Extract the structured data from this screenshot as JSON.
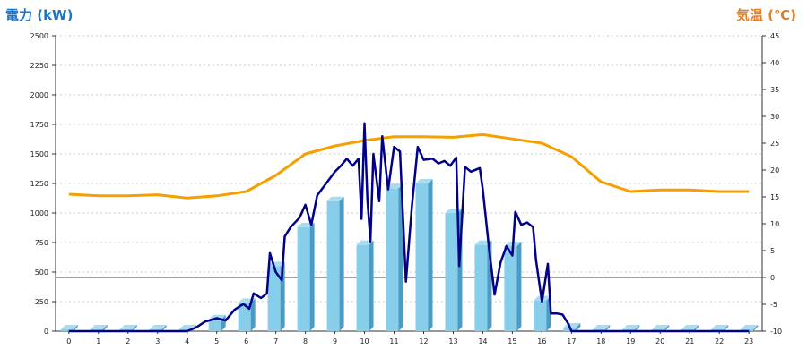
{
  "left_axis_title": "電力 (kW)",
  "right_axis_title": "気温 (℃)",
  "colors": {
    "bar_face": "#87ceeb",
    "bar_side": "#4a9cc4",
    "bar_top": "#a9dcef",
    "power_line": "#00008b",
    "temperature_line": "#f5a000",
    "grid": "#bbbbbb",
    "zero_line": "#000000",
    "left_title": "#1a75c8",
    "right_title": "#e67e22"
  },
  "chart_data": {
    "type": "bar+line",
    "x_ticks": [
      "0",
      "1",
      "2",
      "3",
      "4",
      "5",
      "6",
      "7",
      "8",
      "9",
      "10",
      "11",
      "12",
      "13",
      "14",
      "15",
      "16",
      "17",
      "18",
      "19",
      "20",
      "21",
      "22",
      "23"
    ],
    "y_left_ticks": [
      "0",
      "250",
      "500",
      "750",
      "1000",
      "1250",
      "1500",
      "1750",
      "2000",
      "2250",
      "2500"
    ],
    "y_right_ticks": [
      "-10",
      "-5",
      "0",
      "5",
      "10",
      "15",
      "20",
      "25",
      "30",
      "35",
      "40",
      "45"
    ],
    "y_left_range": [
      0,
      2500
    ],
    "y_right_range": [
      -10,
      45
    ],
    "grid": true,
    "hourly_power_bars": {
      "x": [
        0,
        1,
        2,
        3,
        4,
        5,
        6,
        7,
        8,
        9,
        10,
        11,
        12,
        13,
        14,
        15,
        16,
        17,
        18,
        19,
        20,
        21,
        22,
        23
      ],
      "values": [
        0,
        0,
        0,
        0,
        0,
        100,
        240,
        550,
        880,
        1100,
        730,
        1210,
        1250,
        1000,
        730,
        720,
        260,
        30,
        0,
        0,
        0,
        0,
        0,
        0
      ]
    },
    "power_line": {
      "points": [
        [
          0,
          0
        ],
        [
          1,
          0
        ],
        [
          2,
          0
        ],
        [
          3,
          0
        ],
        [
          4,
          0
        ],
        [
          4.3,
          30
        ],
        [
          4.6,
          80
        ],
        [
          5,
          110
        ],
        [
          5.3,
          90
        ],
        [
          5.6,
          180
        ],
        [
          5.9,
          230
        ],
        [
          6.1,
          190
        ],
        [
          6.25,
          320
        ],
        [
          6.5,
          280
        ],
        [
          6.7,
          320
        ],
        [
          6.8,
          660
        ],
        [
          7,
          500
        ],
        [
          7.2,
          430
        ],
        [
          7.3,
          800
        ],
        [
          7.5,
          880
        ],
        [
          7.8,
          960
        ],
        [
          8,
          1070
        ],
        [
          8.2,
          900
        ],
        [
          8.4,
          1150
        ],
        [
          8.7,
          1250
        ],
        [
          9,
          1350
        ],
        [
          9.2,
          1400
        ],
        [
          9.4,
          1460
        ],
        [
          9.6,
          1400
        ],
        [
          9.8,
          1460
        ],
        [
          9.9,
          950
        ],
        [
          10,
          1760
        ],
        [
          10.1,
          1110
        ],
        [
          10.2,
          760
        ],
        [
          10.3,
          1500
        ],
        [
          10.5,
          1100
        ],
        [
          10.6,
          1650
        ],
        [
          10.8,
          1200
        ],
        [
          11,
          1560
        ],
        [
          11.2,
          1520
        ],
        [
          11.4,
          420
        ],
        [
          11.6,
          1050
        ],
        [
          11.8,
          1560
        ],
        [
          12,
          1450
        ],
        [
          12.3,
          1460
        ],
        [
          12.5,
          1420
        ],
        [
          12.7,
          1440
        ],
        [
          12.9,
          1400
        ],
        [
          13.1,
          1470
        ],
        [
          13.2,
          550
        ],
        [
          13.4,
          1390
        ],
        [
          13.6,
          1350
        ],
        [
          13.9,
          1380
        ],
        [
          14,
          1200
        ],
        [
          14.2,
          730
        ],
        [
          14.4,
          310
        ],
        [
          14.6,
          580
        ],
        [
          14.8,
          720
        ],
        [
          15,
          640
        ],
        [
          15.1,
          1010
        ],
        [
          15.3,
          900
        ],
        [
          15.5,
          920
        ],
        [
          15.7,
          880
        ],
        [
          15.8,
          600
        ],
        [
          16,
          250
        ],
        [
          16.2,
          570
        ],
        [
          16.3,
          150
        ],
        [
          16.5,
          150
        ],
        [
          16.7,
          140
        ],
        [
          16.9,
          60
        ],
        [
          17,
          0
        ],
        [
          18,
          0
        ],
        [
          19,
          0
        ],
        [
          20,
          0
        ],
        [
          21,
          0
        ],
        [
          22,
          0
        ],
        [
          23,
          0
        ]
      ]
    },
    "temperature_line": {
      "points": [
        [
          0,
          15.5
        ],
        [
          1,
          15.2
        ],
        [
          2,
          15.2
        ],
        [
          3,
          15.4
        ],
        [
          4,
          14.8
        ],
        [
          5,
          15.2
        ],
        [
          6,
          16
        ],
        [
          7,
          19
        ],
        [
          8,
          23
        ],
        [
          9,
          24.5
        ],
        [
          10,
          25.5
        ],
        [
          11,
          26.2
        ],
        [
          12,
          26.2
        ],
        [
          13,
          26.1
        ],
        [
          14,
          26.6
        ],
        [
          15,
          25.8
        ],
        [
          16,
          25
        ],
        [
          17,
          22.5
        ],
        [
          18,
          17.8
        ],
        [
          19,
          16
        ],
        [
          20,
          16.3
        ],
        [
          21,
          16.3
        ],
        [
          22,
          16
        ],
        [
          23,
          16
        ]
      ]
    }
  }
}
